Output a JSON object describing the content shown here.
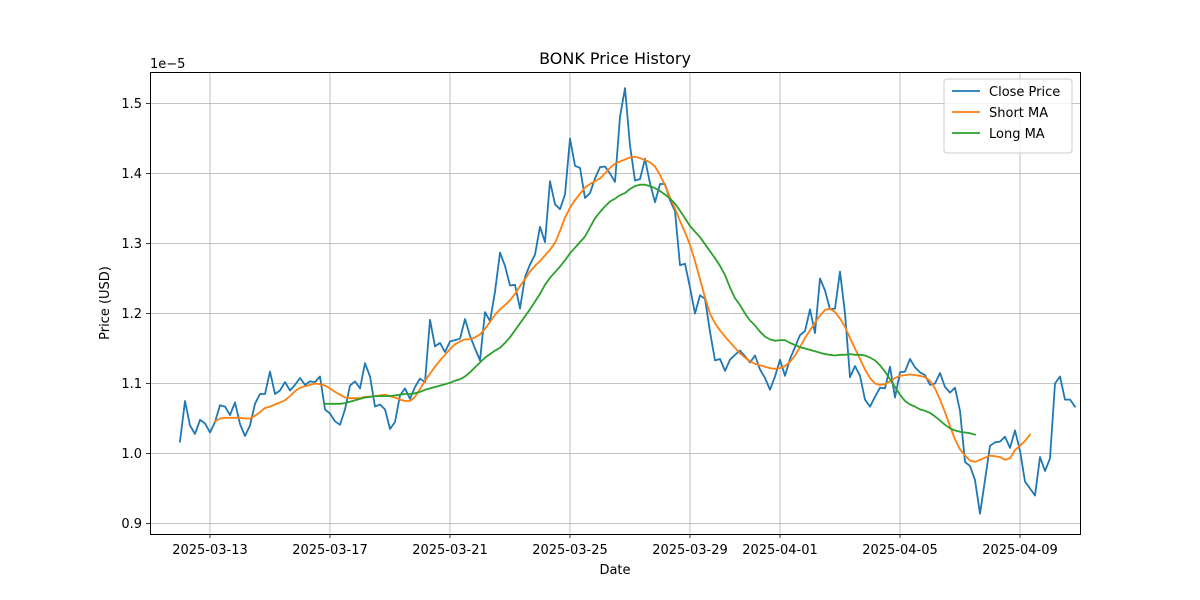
{
  "chart_data": {
    "type": "line",
    "title": "BONK Price History",
    "xlabel": "Date",
    "ylabel": "Price (USD)",
    "y_offset_label": "1e−5",
    "x_start": "2025-03-12T00:00",
    "x_step_hours": 4,
    "xlim": [
      "2025-03-11T00:00",
      "2025-04-11T00:00"
    ],
    "ylim": [
      0.885,
      1.545
    ],
    "x_ticks": [
      {
        "date": "2025-03-13",
        "label": "2025-03-13"
      },
      {
        "date": "2025-03-17",
        "label": "2025-03-17"
      },
      {
        "date": "2025-03-21",
        "label": "2025-03-21"
      },
      {
        "date": "2025-03-25",
        "label": "2025-03-25"
      },
      {
        "date": "2025-03-29",
        "label": "2025-03-29"
      },
      {
        "date": "2025-04-01",
        "label": "2025-04-01"
      },
      {
        "date": "2025-04-05",
        "label": "2025-04-05"
      },
      {
        "date": "2025-04-09",
        "label": "2025-04-09"
      }
    ],
    "y_ticks": [
      {
        "value": 0.9,
        "label": "0.9"
      },
      {
        "value": 1.0,
        "label": "1.0"
      },
      {
        "value": 1.1,
        "label": "1.1"
      },
      {
        "value": 1.2,
        "label": "1.2"
      },
      {
        "value": 1.3,
        "label": "1.3"
      },
      {
        "value": 1.4,
        "label": "1.4"
      },
      {
        "value": 1.5,
        "label": "1.5"
      }
    ],
    "grid": true,
    "legend_position": "top-right",
    "series": [
      {
        "name": "Close Price",
        "color": "#1f77b4",
        "values": [
          1.017,
          1.075,
          1.04,
          1.028,
          1.048,
          1.043,
          1.03,
          1.045,
          1.069,
          1.067,
          1.055,
          1.073,
          1.042,
          1.025,
          1.04,
          1.071,
          1.085,
          1.085,
          1.117,
          1.085,
          1.09,
          1.102,
          1.09,
          1.098,
          1.108,
          1.098,
          1.103,
          1.102,
          1.11,
          1.063,
          1.057,
          1.046,
          1.041,
          1.063,
          1.097,
          1.103,
          1.093,
          1.129,
          1.11,
          1.067,
          1.07,
          1.063,
          1.035,
          1.045,
          1.083,
          1.093,
          1.078,
          1.095,
          1.107,
          1.102,
          1.191,
          1.153,
          1.158,
          1.145,
          1.16,
          1.162,
          1.164,
          1.192,
          1.168,
          1.15,
          1.133,
          1.202,
          1.189,
          1.231,
          1.287,
          1.268,
          1.24,
          1.241,
          1.207,
          1.252,
          1.27,
          1.284,
          1.324,
          1.302,
          1.389,
          1.356,
          1.349,
          1.37,
          1.45,
          1.411,
          1.408,
          1.365,
          1.372,
          1.393,
          1.409,
          1.41,
          1.4,
          1.388,
          1.481,
          1.522,
          1.44,
          1.39,
          1.392,
          1.421,
          1.386,
          1.359,
          1.385,
          1.385,
          1.362,
          1.346,
          1.269,
          1.271,
          1.237,
          1.2,
          1.226,
          1.221,
          1.174,
          1.133,
          1.135,
          1.118,
          1.134,
          1.141,
          1.147,
          1.139,
          1.13,
          1.14,
          1.12,
          1.108,
          1.091,
          1.11,
          1.134,
          1.111,
          1.135,
          1.152,
          1.169,
          1.175,
          1.206,
          1.172,
          1.25,
          1.233,
          1.206,
          1.207,
          1.26,
          1.2,
          1.109,
          1.125,
          1.111,
          1.077,
          1.067,
          1.081,
          1.094,
          1.093,
          1.124,
          1.08,
          1.116,
          1.117,
          1.135,
          1.123,
          1.116,
          1.112,
          1.098,
          1.1,
          1.115,
          1.095,
          1.087,
          1.094,
          1.061,
          0.988,
          0.982,
          0.962,
          0.914,
          0.962,
          1.011,
          1.016,
          1.017,
          1.024,
          1.008,
          1.033,
          1.004,
          0.96,
          0.95,
          0.94,
          0.995,
          0.975,
          0.993,
          1.1,
          1.11,
          1.077,
          1.077,
          1.067
        ]
      },
      {
        "name": "Short MA",
        "color": "#ff7f0e",
        "start_index": 7,
        "values": [
          1.046,
          1.05,
          1.051,
          1.051,
          1.051,
          1.051,
          1.05,
          1.05,
          1.054,
          1.059,
          1.065,
          1.067,
          1.07,
          1.073,
          1.076,
          1.082,
          1.089,
          1.094,
          1.096,
          1.098,
          1.1,
          1.099,
          1.097,
          1.093,
          1.088,
          1.084,
          1.08,
          1.079,
          1.079,
          1.079,
          1.081,
          1.081,
          1.082,
          1.083,
          1.084,
          1.082,
          1.08,
          1.077,
          1.075,
          1.075,
          1.081,
          1.092,
          1.104,
          1.114,
          1.124,
          1.133,
          1.141,
          1.149,
          1.156,
          1.16,
          1.163,
          1.163,
          1.166,
          1.17,
          1.178,
          1.188,
          1.198,
          1.206,
          1.212,
          1.219,
          1.228,
          1.239,
          1.249,
          1.26,
          1.268,
          1.275,
          1.283,
          1.291,
          1.301,
          1.318,
          1.337,
          1.351,
          1.362,
          1.371,
          1.38,
          1.385,
          1.389,
          1.393,
          1.4,
          1.408,
          1.414,
          1.417,
          1.42,
          1.423,
          1.424,
          1.422,
          1.419,
          1.416,
          1.41,
          1.398,
          1.383,
          1.366,
          1.35,
          1.332,
          1.316,
          1.298,
          1.275,
          1.249,
          1.223,
          1.2,
          1.186,
          1.176,
          1.167,
          1.159,
          1.151,
          1.143,
          1.137,
          1.132,
          1.128,
          1.126,
          1.124,
          1.122,
          1.121,
          1.122,
          1.125,
          1.131,
          1.14,
          1.152,
          1.165,
          1.176,
          1.187,
          1.197,
          1.205,
          1.207,
          1.202,
          1.193,
          1.181,
          1.165,
          1.15,
          1.135,
          1.12,
          1.108,
          1.1,
          1.098,
          1.099,
          1.103,
          1.108,
          1.111,
          1.112,
          1.113,
          1.112,
          1.111,
          1.109,
          1.104,
          1.093,
          1.077,
          1.059,
          1.039,
          1.02,
          1.006,
          0.997,
          0.99,
          0.988,
          0.991,
          0.994,
          0.997,
          0.996,
          0.995,
          0.991,
          0.993,
          1.005,
          1.011,
          1.018,
          1.027
        ]
      },
      {
        "name": "Long MA",
        "color": "#2ca02c",
        "start_index": 29,
        "values": [
          1.071,
          1.071,
          1.071,
          1.071,
          1.072,
          1.074,
          1.076,
          1.078,
          1.08,
          1.081,
          1.082,
          1.082,
          1.082,
          1.082,
          1.083,
          1.084,
          1.085,
          1.085,
          1.086,
          1.088,
          1.091,
          1.093,
          1.095,
          1.097,
          1.099,
          1.101,
          1.104,
          1.106,
          1.11,
          1.116,
          1.123,
          1.13,
          1.137,
          1.142,
          1.147,
          1.151,
          1.158,
          1.166,
          1.176,
          1.186,
          1.196,
          1.206,
          1.217,
          1.228,
          1.241,
          1.251,
          1.259,
          1.267,
          1.276,
          1.286,
          1.294,
          1.302,
          1.31,
          1.323,
          1.336,
          1.345,
          1.353,
          1.36,
          1.364,
          1.369,
          1.372,
          1.378,
          1.382,
          1.384,
          1.384,
          1.382,
          1.379,
          1.375,
          1.37,
          1.364,
          1.357,
          1.347,
          1.336,
          1.325,
          1.317,
          1.309,
          1.299,
          1.289,
          1.279,
          1.268,
          1.255,
          1.237,
          1.222,
          1.212,
          1.2,
          1.19,
          1.183,
          1.174,
          1.167,
          1.163,
          1.161,
          1.162,
          1.162,
          1.158,
          1.155,
          1.152,
          1.15,
          1.148,
          1.146,
          1.144,
          1.142,
          1.141,
          1.14,
          1.141,
          1.141,
          1.142,
          1.141,
          1.141,
          1.14,
          1.137,
          1.133,
          1.126,
          1.117,
          1.106,
          1.095,
          1.084,
          1.075,
          1.07,
          1.067,
          1.063,
          1.061,
          1.058,
          1.053,
          1.047,
          1.041,
          1.036,
          1.033,
          1.031,
          1.03,
          1.029,
          1.027
        ]
      }
    ]
  }
}
